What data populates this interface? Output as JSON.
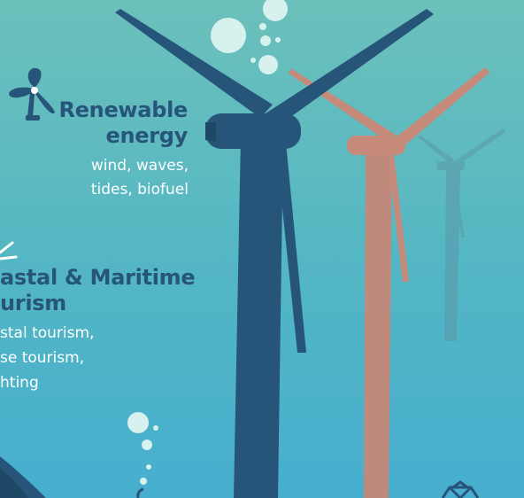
{
  "renewable": {
    "title_line1": "Renewable",
    "title_line2": "energy",
    "sub_line1": "wind, waves,",
    "sub_line2": "tides, biofuel",
    "icon": "fan-icon"
  },
  "tourism": {
    "title_line1": "astal & Maritime",
    "title_line2": "urism",
    "sub_line1": "stal tourism,",
    "sub_line2": "se tourism,",
    "sub_line3": "hting"
  },
  "colors": {
    "sea_top": "#6cc0bb",
    "sea_bottom": "#47aecf",
    "navy": "#27557a",
    "salmon": "#c58a7a",
    "bubble": "#d6f1ee"
  }
}
